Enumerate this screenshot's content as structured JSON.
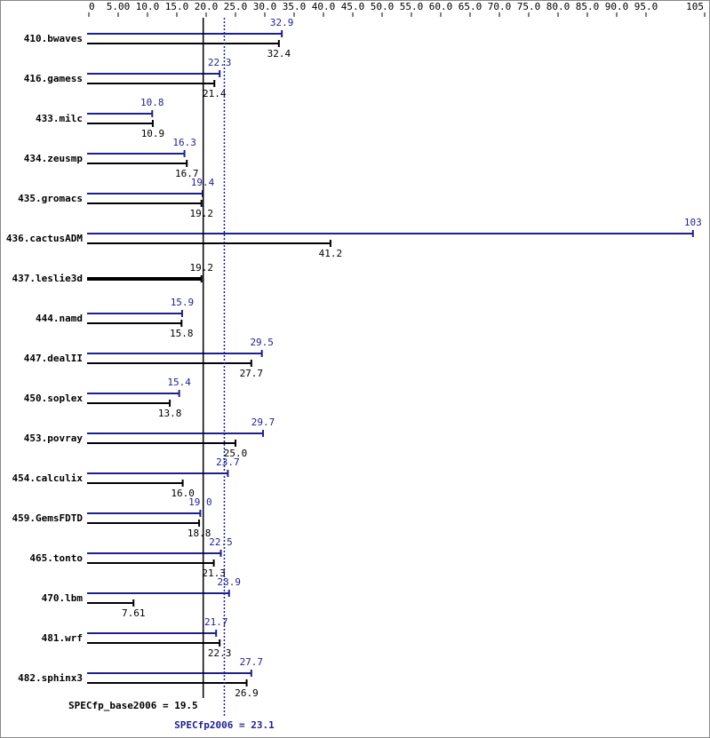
{
  "chart_data": {
    "type": "hbar",
    "categories": [
      "410.bwaves",
      "416.gamess",
      "433.milc",
      "434.zeusmp",
      "435.gromacs",
      "436.cactusADM",
      "437.leslie3d",
      "444.namd",
      "447.dealII",
      "450.soplex",
      "453.povray",
      "454.calculix",
      "459.GemsFDTD",
      "465.tonto",
      "470.lbm",
      "481.wrf",
      "482.sphinx3"
    ],
    "series": [
      {
        "color": "#1f1f8f",
        "values": [
          32.9,
          22.3,
          10.8,
          16.3,
          19.4,
          103,
          null,
          15.9,
          29.5,
          15.4,
          29.7,
          23.7,
          19.0,
          22.5,
          23.9,
          21.7,
          27.7
        ],
        "value_labels": [
          "32.9",
          "22.3",
          "10.8",
          "16.3",
          "19.4",
          "103",
          null,
          "15.9",
          "29.5",
          "15.4",
          "29.7",
          "23.7",
          "19.0",
          "22.5",
          "23.9",
          "21.7",
          "27.7"
        ]
      },
      {
        "color": "#000000",
        "values": [
          32.4,
          21.4,
          10.9,
          16.7,
          19.2,
          41.2,
          19.2,
          15.8,
          27.7,
          13.8,
          25.0,
          16.0,
          18.8,
          21.3,
          7.61,
          22.3,
          26.9
        ],
        "value_labels": [
          "32.4",
          "21.4",
          "10.9",
          "16.7",
          "19.2",
          "41.2",
          "19.2",
          "15.8",
          "27.7",
          "13.8",
          "25.0",
          "16.0",
          "18.8",
          "21.3",
          "7.61",
          "22.3",
          "26.9"
        ]
      }
    ],
    "xlim": [
      0,
      105
    ],
    "xticks": [
      0,
      {
        "value": 5,
        "label": "5.00"
      },
      {
        "value": 10,
        "label": "10.0"
      },
      {
        "value": 15,
        "label": "15.0"
      },
      {
        "value": 20,
        "label": "20.0"
      },
      {
        "value": 25,
        "label": "25.0"
      },
      {
        "value": 30,
        "label": "30.0"
      },
      {
        "value": 35,
        "label": "35.0"
      },
      {
        "value": 40,
        "label": "40.0"
      },
      {
        "value": 45,
        "label": "45.0"
      },
      {
        "value": 50,
        "label": "50.0"
      },
      {
        "value": 55,
        "label": "55.0"
      },
      {
        "value": 60,
        "label": "60.0"
      },
      {
        "value": 65,
        "label": "65.0"
      },
      {
        "value": 70,
        "label": "70.0"
      },
      {
        "value": 75,
        "label": "75.0"
      },
      {
        "value": 80,
        "label": "80.0"
      },
      {
        "value": 85,
        "label": "85.0"
      },
      {
        "value": 90,
        "label": "90.0"
      },
      {
        "value": 95,
        "label": "95.0"
      },
      105
    ],
    "reference_lines": [
      {
        "label": "SPECfp_base2006 = 19.5",
        "value": 19.5,
        "color": "#000000",
        "style": "solid"
      },
      {
        "label": "SPECfp2006 = 23.1",
        "value": 23.1,
        "color": "#1f1f8f",
        "style": "dotted"
      }
    ]
  }
}
